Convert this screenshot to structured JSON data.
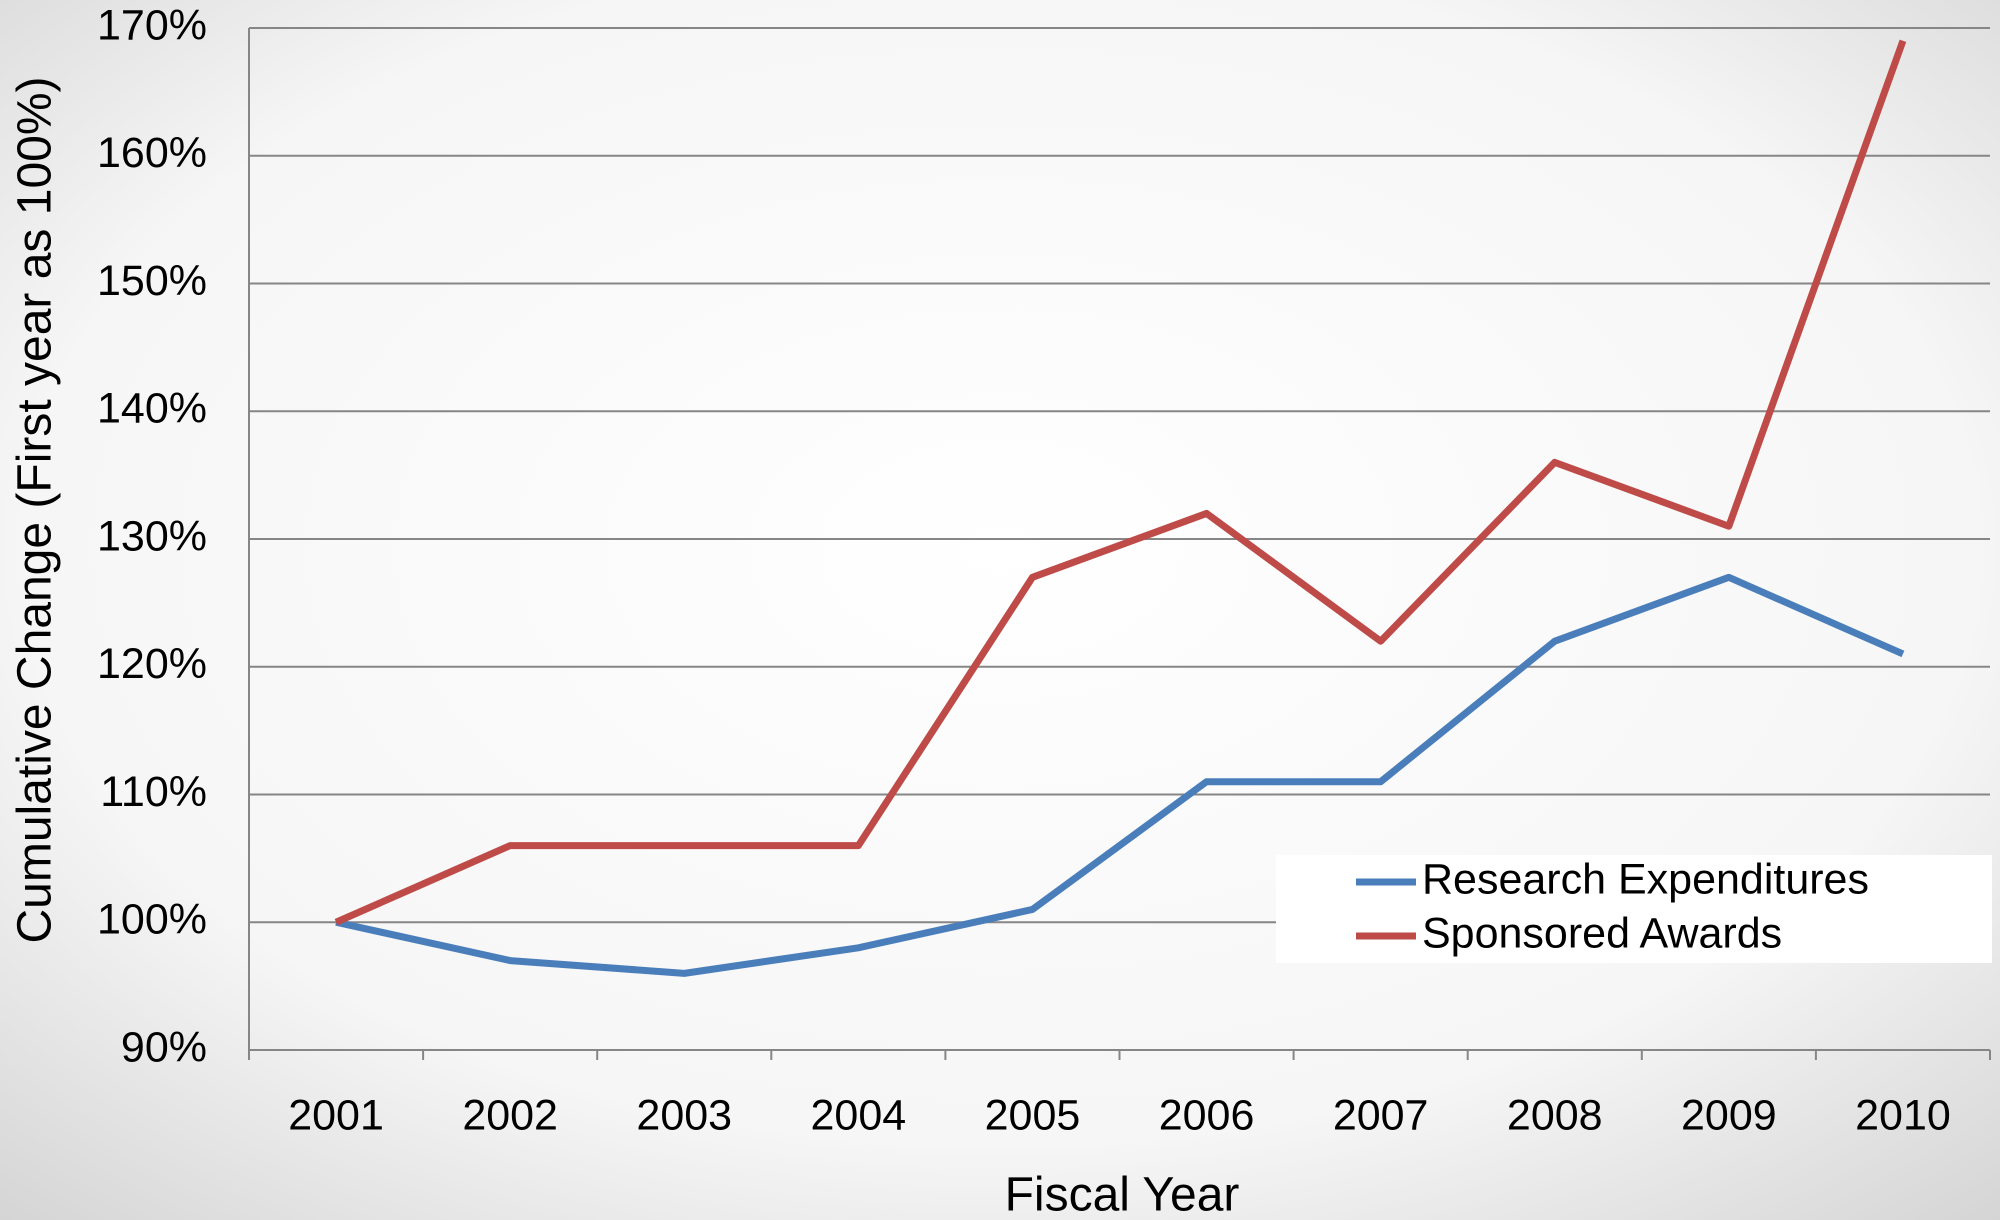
{
  "chart_data": {
    "type": "line",
    "x_label": "Fiscal Year",
    "y_label": "Cumulative Change (First year as 100%)",
    "categories": [
      "2001",
      "2002",
      "2003",
      "2004",
      "2005",
      "2006",
      "2007",
      "2008",
      "2009",
      "2010"
    ],
    "series": [
      {
        "name": "Research Expenditures",
        "color": "#4a7ebb",
        "values": [
          100,
          97,
          96,
          98,
          101,
          111,
          111,
          122,
          127,
          121
        ]
      },
      {
        "name": "Sponsored Awards",
        "color": "#be4b48",
        "values": [
          100,
          106,
          106,
          106,
          127,
          132,
          122,
          136,
          131,
          169
        ]
      }
    ],
    "ylim": [
      90,
      170
    ],
    "yticks": [
      {
        "value": 90,
        "label": "90%"
      },
      {
        "value": 100,
        "label": "100%"
      },
      {
        "value": 110,
        "label": "110%"
      },
      {
        "value": 120,
        "label": "120%"
      },
      {
        "value": 130,
        "label": "130%"
      },
      {
        "value": 140,
        "label": "140%"
      },
      {
        "value": 150,
        "label": "150%"
      },
      {
        "value": 160,
        "label": "160%"
      },
      {
        "value": 170,
        "label": "170%"
      }
    ],
    "grid": true,
    "legend": "lower right"
  }
}
